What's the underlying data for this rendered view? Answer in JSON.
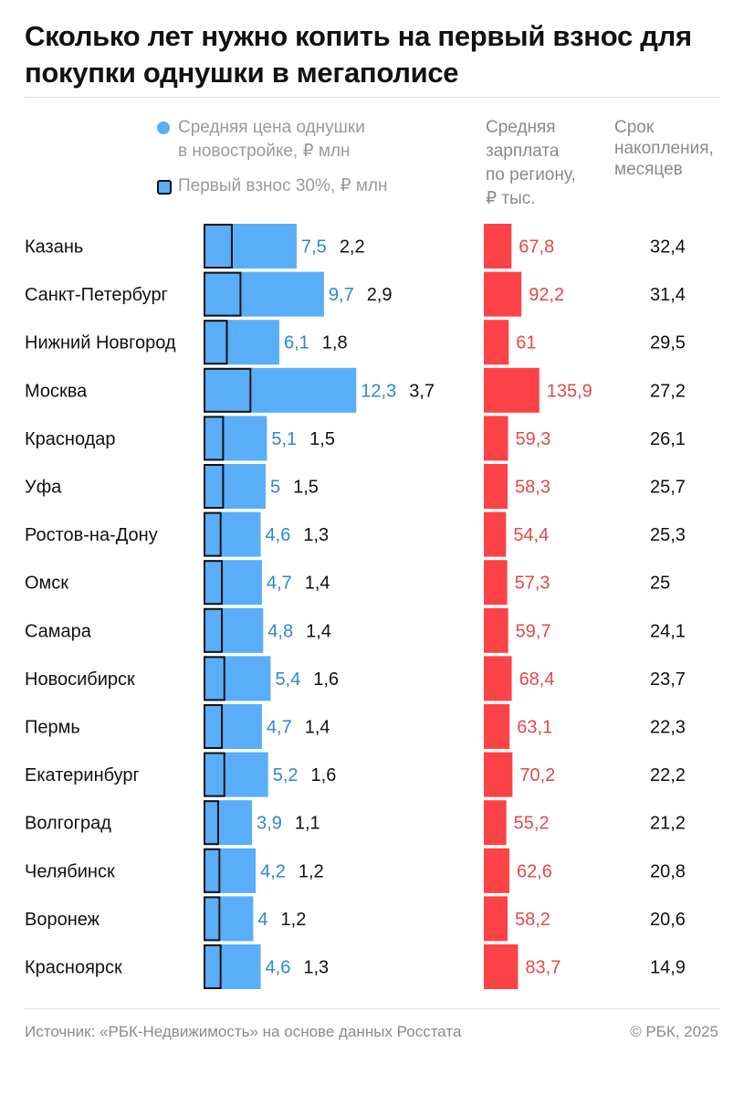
{
  "title": "Сколько лет нужно копить на первый взнос для покупки однушки в мегаполисе",
  "legend": {
    "price": "Средняя цена однушки в новостройке, ₽ млн",
    "price_line1": "Средняя цена однушки",
    "price_line2": "в новостройке, ₽ млн",
    "down_payment": "Первый взнос 30%, ₽ млн"
  },
  "columns": {
    "salary": "Средняя зарплата по региону, ₽ тыс.",
    "salary_lines": [
      "Средняя",
      "зарплата",
      "по региону,",
      "₽ тыс."
    ],
    "months": "Срок накопления, месяцев",
    "months_lines": [
      "Срок",
      "накопления,",
      "месяцев"
    ]
  },
  "footer": {
    "source": "Источник: «РБК-Недвижимость» на основе данных Росстата",
    "copyright": "© РБК, 2025"
  },
  "colors": {
    "price_bar": "#5aaef7",
    "price_label": "#2f86d6",
    "salary_bar": "#fb4347",
    "salary_label": "#e8474b",
    "text": "#111111",
    "muted": "#8a8a8a"
  },
  "chart_data": {
    "type": "bar",
    "categories": [
      "Казань",
      "Санкт-Петербург",
      "Нижний Новгород",
      "Москва",
      "Краснодар",
      "Уфа",
      "Ростов-на-Дону",
      "Омск",
      "Самара",
      "Новосибирск",
      "Пермь",
      "Екатеринбург",
      "Волгоград",
      "Челябинск",
      "Воронеж",
      "Красноярск"
    ],
    "series": [
      {
        "name": "Средняя цена однушки в новостройке, ₽ млн",
        "labels": [
          "7,5",
          "9,7",
          "6,1",
          "12,3",
          "5,1",
          "5",
          "4,6",
          "4,7",
          "4,8",
          "5,4",
          "4,7",
          "5,2",
          "3,9",
          "4,2",
          "4",
          "4,6"
        ],
        "values": [
          7.5,
          9.7,
          6.1,
          12.3,
          5.1,
          5,
          4.6,
          4.7,
          4.8,
          5.4,
          4.7,
          5.2,
          3.9,
          4.2,
          4,
          4.6
        ]
      },
      {
        "name": "Первый взнос 30%, ₽ млн",
        "labels": [
          "2,2",
          "2,9",
          "1,8",
          "3,7",
          "1,5",
          "1,5",
          "1,3",
          "1,4",
          "1,4",
          "1,6",
          "1,4",
          "1,6",
          "1,1",
          "1,2",
          "1,2",
          "1,3"
        ],
        "values": [
          2.2,
          2.9,
          1.8,
          3.7,
          1.5,
          1.5,
          1.3,
          1.4,
          1.4,
          1.6,
          1.4,
          1.6,
          1.1,
          1.2,
          1.2,
          1.3
        ]
      },
      {
        "name": "Средняя зарплата по региону, ₽ тыс.",
        "labels": [
          "67,8",
          "92,2",
          "61",
          "135,9",
          "59,3",
          "58,3",
          "54,4",
          "57,3",
          "59,7",
          "68,4",
          "63,1",
          "70,2",
          "55,2",
          "62,6",
          "58,2",
          "83,7"
        ],
        "values": [
          67.8,
          92.2,
          61,
          135.9,
          59.3,
          58.3,
          54.4,
          57.3,
          59.7,
          68.4,
          63.1,
          70.2,
          55.2,
          62.6,
          58.2,
          83.7
        ]
      },
      {
        "name": "Срок накопления, месяцев",
        "labels": [
          "32,4",
          "31,4",
          "29,5",
          "27,2",
          "26,1",
          "25,7",
          "25,3",
          "25",
          "24,1",
          "23,7",
          "22,3",
          "22,2",
          "21,2",
          "20,8",
          "20,6",
          "14,9"
        ],
        "values": [
          32.4,
          31.4,
          29.5,
          27.2,
          26.1,
          25.7,
          25.3,
          25,
          24.1,
          23.7,
          22.3,
          22.2,
          21.2,
          20.8,
          20.6,
          14.9
        ]
      }
    ]
  }
}
